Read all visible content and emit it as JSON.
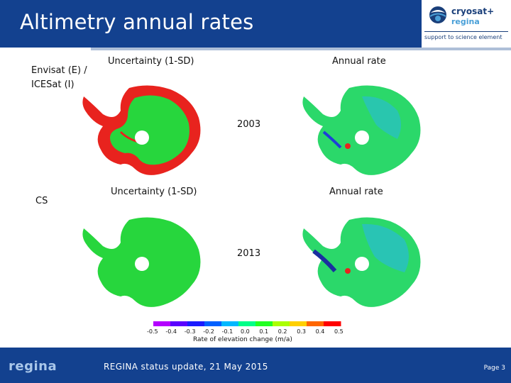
{
  "header": {
    "title": "Altimetry annual rates",
    "logo": {
      "name": "cryosat+",
      "sub": "regina",
      "tagline": "support to science element"
    }
  },
  "figure": {
    "row_labels": {
      "top": "Envisat (E) / ICESat (I)",
      "top_line1": "Envisat (E) /",
      "top_line2": "ICESat (I)",
      "bottom": "CS"
    },
    "panel_titles": {
      "top_left": "Uncertainty (1-SD)",
      "top_right": "Annual rate",
      "bottom_left": "Uncertainty (1-SD)",
      "bottom_right": "Annual rate"
    },
    "years": {
      "top": "2003",
      "bottom": "2013"
    },
    "colorbar": {
      "ticks": [
        "-0.5",
        "-0.4",
        "-0.3",
        "-0.2",
        "-0.1",
        "0.0",
        "0.1",
        "0.2",
        "0.3",
        "0.4",
        "0.5"
      ],
      "label": "Rate of elevation change (m/a)",
      "colors": [
        "#b400ff",
        "#5a00ff",
        "#1a1aff",
        "#0060ff",
        "#00b8ff",
        "#00ff88",
        "#22ff22",
        "#aaff00",
        "#ffd000",
        "#ff6600",
        "#ff0000"
      ]
    }
  },
  "footer": {
    "logo": "regina",
    "text": "REGINA status update, 21 May 2015",
    "page": "Page 3"
  }
}
